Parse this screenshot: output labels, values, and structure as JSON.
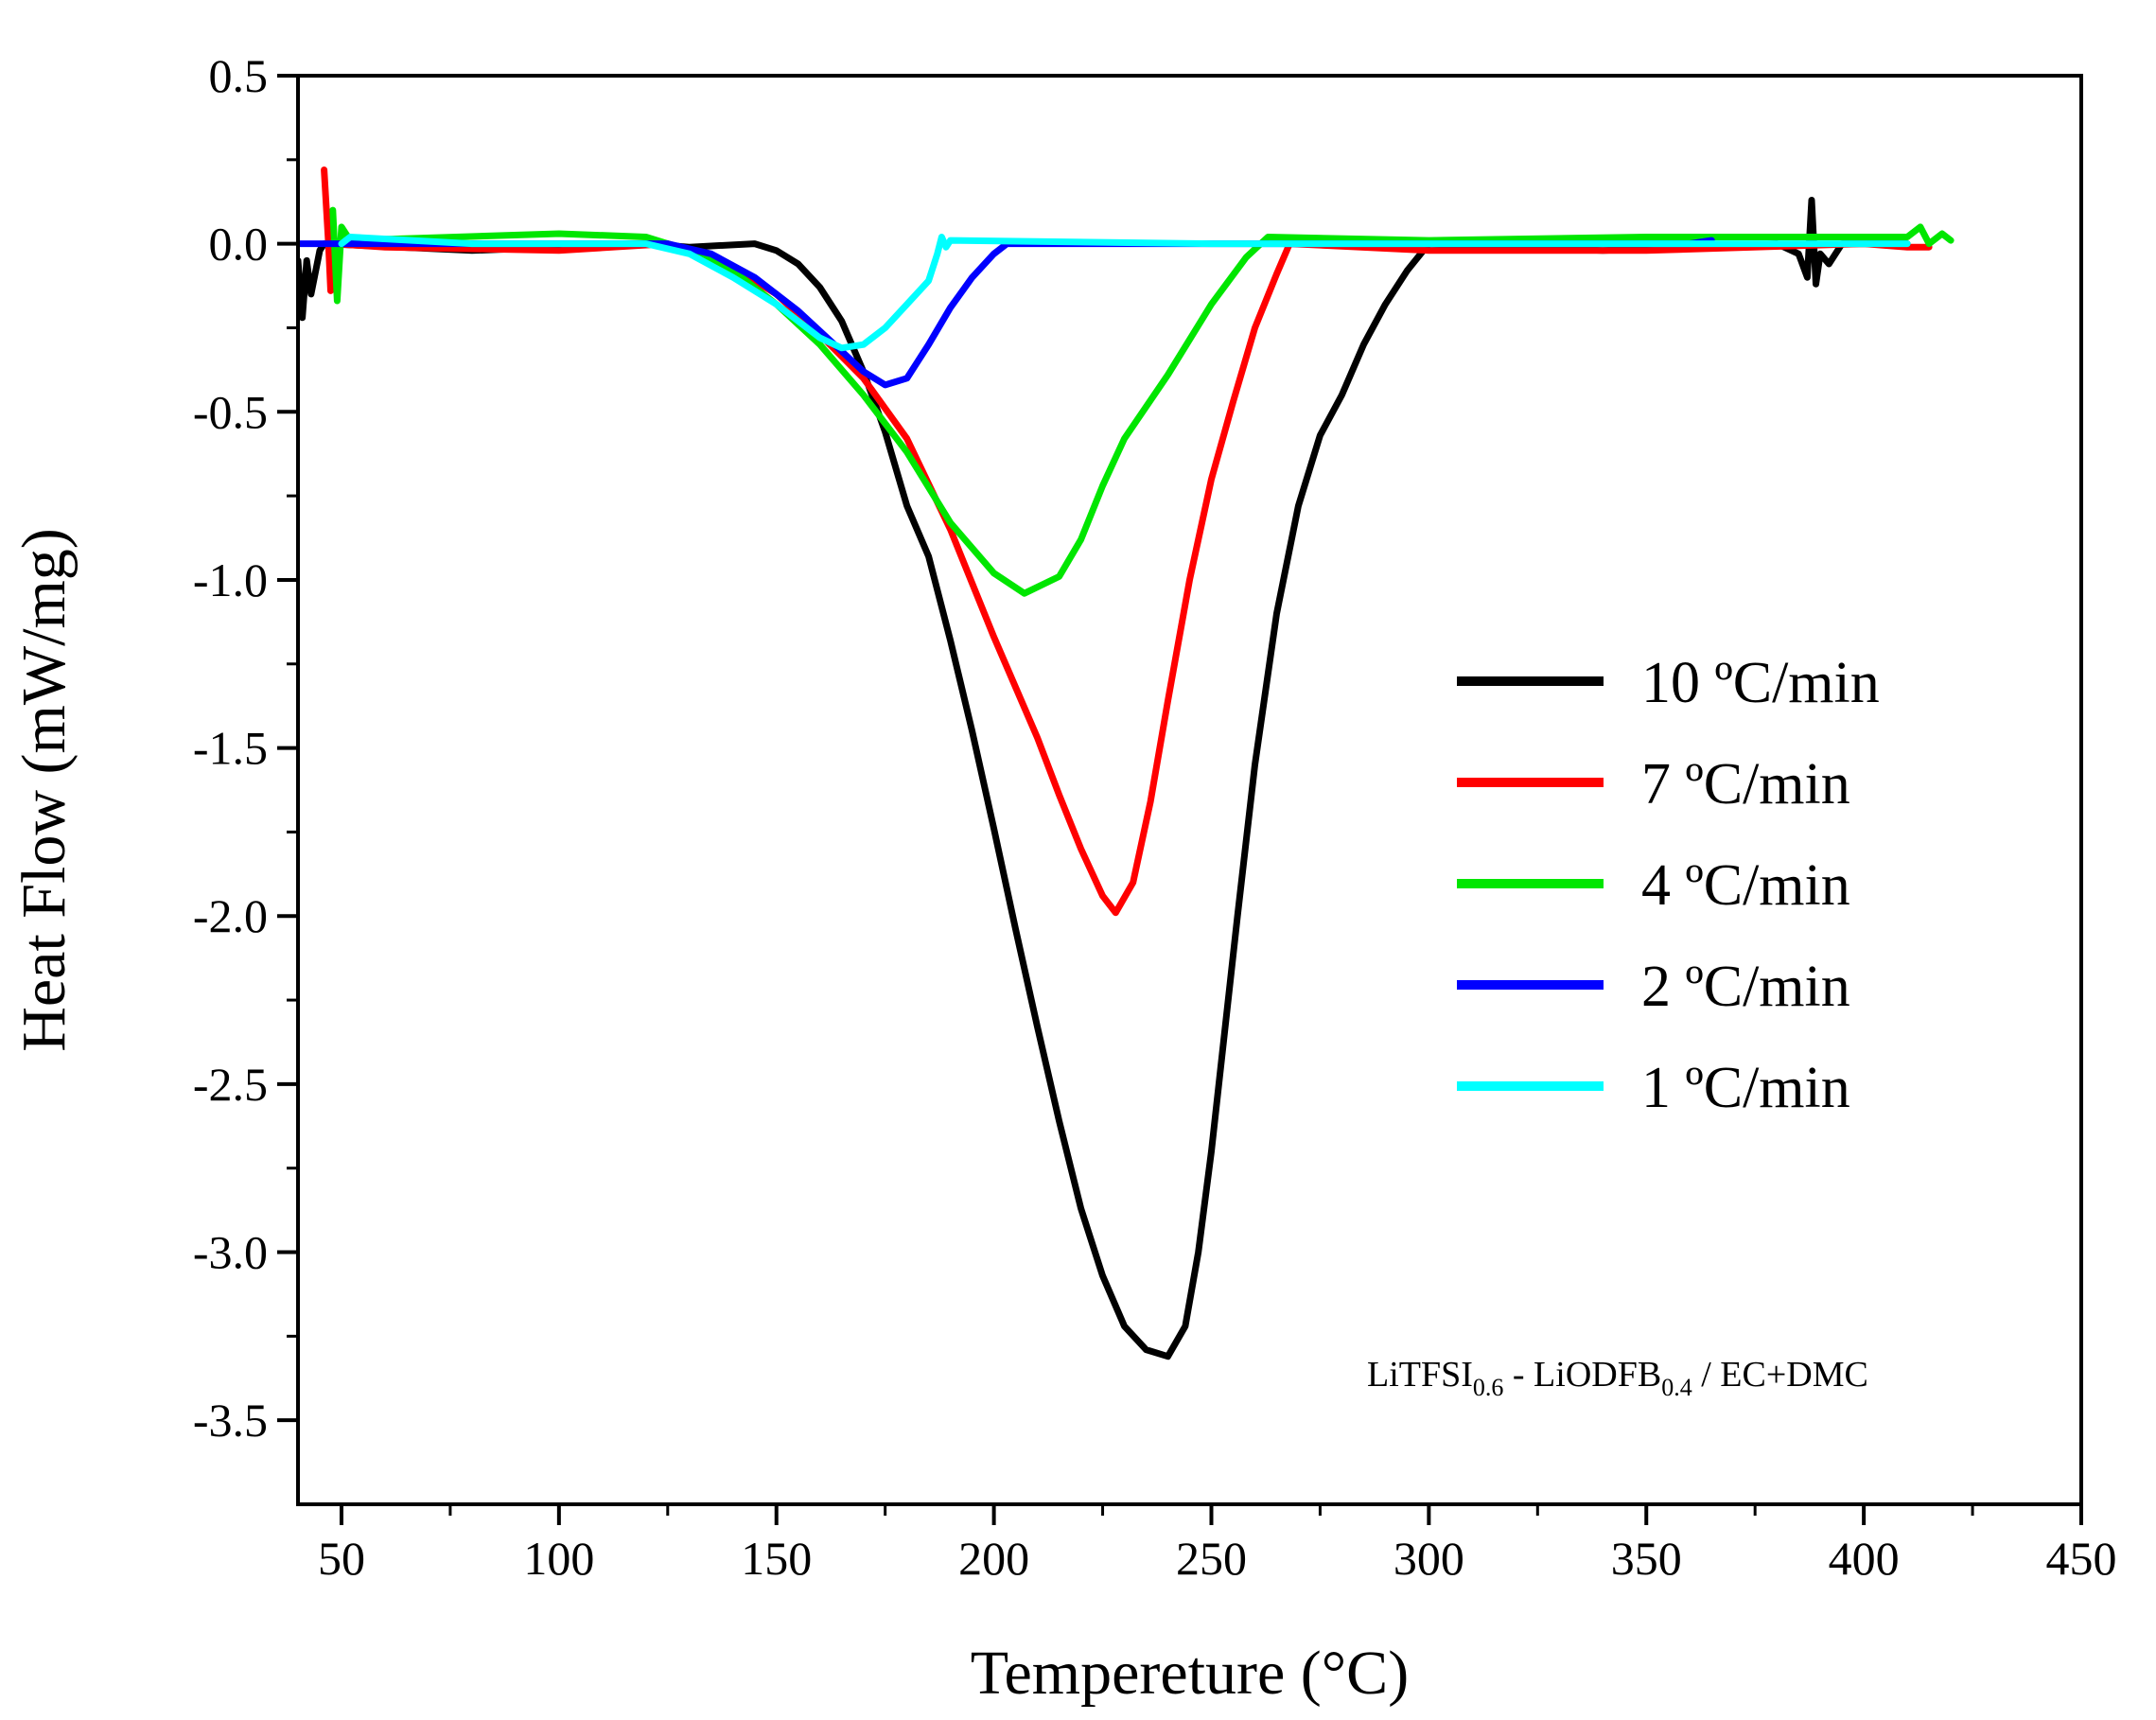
{
  "chart_data": {
    "type": "line",
    "title": "",
    "xlabel": "Tempereture (°C)",
    "ylabel": "Heat Flow (mW/mg)",
    "xlim": [
      40,
      450
    ],
    "ylim": [
      -3.75,
      0.5
    ],
    "xticks": [
      50,
      100,
      150,
      200,
      250,
      300,
      350,
      400,
      450
    ],
    "xtick_labels": [
      "50",
      "100",
      "150",
      "200",
      "250",
      "300",
      "350",
      "400",
      "450"
    ],
    "yticks": [
      0.5,
      0.0,
      -0.5,
      -1.0,
      -1.5,
      -2.0,
      -2.5,
      -3.0,
      -3.5
    ],
    "ytick_labels": [
      "0.5",
      "0.0",
      "-0.5",
      "-1.0",
      "-1.5",
      "-2.0",
      "-2.5",
      "-3.0",
      "-3.5"
    ],
    "grid": false,
    "legend_position": "right",
    "annotation": {
      "parts": [
        {
          "text": "LiTFSI",
          "sub": false
        },
        {
          "text": "0.6",
          "sub": true
        },
        {
          "text": " - LiODFB",
          "sub": false
        },
        {
          "text": "0.4",
          "sub": true
        },
        {
          "text": " / EC+DMC",
          "sub": false
        }
      ]
    },
    "series": [
      {
        "name": "10 ºC/min",
        "color": "#000000",
        "points": [
          [
            40,
            -0.05
          ],
          [
            41,
            -0.22
          ],
          [
            42,
            -0.05
          ],
          [
            43,
            -0.15
          ],
          [
            45,
            -0.02
          ],
          [
            46,
            0.0
          ],
          [
            80,
            -0.02
          ],
          [
            120,
            0.0
          ],
          [
            130,
            -0.01
          ],
          [
            145,
            0.0
          ],
          [
            150,
            -0.02
          ],
          [
            155,
            -0.06
          ],
          [
            160,
            -0.13
          ],
          [
            165,
            -0.23
          ],
          [
            170,
            -0.38
          ],
          [
            175,
            -0.56
          ],
          [
            180,
            -0.78
          ],
          [
            185,
            -0.93
          ],
          [
            190,
            -1.18
          ],
          [
            195,
            -1.45
          ],
          [
            200,
            -1.74
          ],
          [
            205,
            -2.04
          ],
          [
            210,
            -2.33
          ],
          [
            215,
            -2.61
          ],
          [
            220,
            -2.87
          ],
          [
            225,
            -3.07
          ],
          [
            230,
            -3.22
          ],
          [
            235,
            -3.29
          ],
          [
            240,
            -3.31
          ],
          [
            244,
            -3.22
          ],
          [
            247,
            -3.0
          ],
          [
            250,
            -2.7
          ],
          [
            253,
            -2.35
          ],
          [
            256,
            -2.0
          ],
          [
            260,
            -1.55
          ],
          [
            265,
            -1.1
          ],
          [
            270,
            -0.78
          ],
          [
            275,
            -0.57
          ],
          [
            280,
            -0.45
          ],
          [
            285,
            -0.3
          ],
          [
            290,
            -0.18
          ],
          [
            295,
            -0.08
          ],
          [
            300,
            0.0
          ],
          [
            340,
            -0.02
          ],
          [
            380,
            0.0
          ],
          [
            385,
            -0.03
          ],
          [
            387,
            -0.1
          ],
          [
            388,
            0.13
          ],
          [
            389,
            -0.12
          ],
          [
            390,
            -0.03
          ],
          [
            392,
            -0.06
          ],
          [
            395,
            0.0
          ],
          [
            410,
            0.0
          ]
        ]
      },
      {
        "name": "7 ºC/min",
        "color": "#ff0000",
        "points": [
          [
            46,
            0.22
          ],
          [
            47,
            0.0
          ],
          [
            47.5,
            -0.14
          ],
          [
            48,
            0.0
          ],
          [
            60,
            -0.01
          ],
          [
            100,
            -0.02
          ],
          [
            125,
            0.0
          ],
          [
            130,
            -0.02
          ],
          [
            140,
            -0.07
          ],
          [
            150,
            -0.15
          ],
          [
            160,
            -0.27
          ],
          [
            170,
            -0.4
          ],
          [
            180,
            -0.58
          ],
          [
            190,
            -0.85
          ],
          [
            200,
            -1.17
          ],
          [
            210,
            -1.47
          ],
          [
            215,
            -1.64
          ],
          [
            220,
            -1.8
          ],
          [
            225,
            -1.94
          ],
          [
            228,
            -1.99
          ],
          [
            232,
            -1.9
          ],
          [
            236,
            -1.66
          ],
          [
            240,
            -1.36
          ],
          [
            245,
            -1.0
          ],
          [
            250,
            -0.7
          ],
          [
            255,
            -0.47
          ],
          [
            260,
            -0.25
          ],
          [
            265,
            -0.09
          ],
          [
            268,
            0.0
          ],
          [
            300,
            -0.02
          ],
          [
            350,
            -0.02
          ],
          [
            400,
            0.0
          ],
          [
            410,
            -0.01
          ],
          [
            415,
            -0.01
          ]
        ]
      },
      {
        "name": "4 ºC/min",
        "color": "#00e600",
        "points": [
          [
            48,
            0.1
          ],
          [
            49,
            -0.17
          ],
          [
            50,
            0.05
          ],
          [
            52,
            0.01
          ],
          [
            100,
            0.03
          ],
          [
            120,
            0.02
          ],
          [
            125,
            0.0
          ],
          [
            130,
            -0.02
          ],
          [
            140,
            -0.08
          ],
          [
            150,
            -0.18
          ],
          [
            160,
            -0.3
          ],
          [
            170,
            -0.45
          ],
          [
            180,
            -0.62
          ],
          [
            190,
            -0.83
          ],
          [
            200,
            -0.98
          ],
          [
            207,
            -1.04
          ],
          [
            215,
            -0.99
          ],
          [
            220,
            -0.88
          ],
          [
            225,
            -0.72
          ],
          [
            230,
            -0.58
          ],
          [
            240,
            -0.39
          ],
          [
            250,
            -0.18
          ],
          [
            258,
            -0.04
          ],
          [
            263,
            0.02
          ],
          [
            300,
            0.01
          ],
          [
            350,
            0.02
          ],
          [
            400,
            0.02
          ],
          [
            410,
            0.02
          ],
          [
            413,
            0.05
          ],
          [
            415,
            0.0
          ],
          [
            418,
            0.03
          ],
          [
            420,
            0.01
          ]
        ]
      },
      {
        "name": "2 ºC/min",
        "color": "#0000ff",
        "points": [
          [
            40,
            0.0
          ],
          [
            60,
            0.0
          ],
          [
            100,
            0.0
          ],
          [
            125,
            0.0
          ],
          [
            135,
            -0.03
          ],
          [
            145,
            -0.1
          ],
          [
            155,
            -0.2
          ],
          [
            165,
            -0.32
          ],
          [
            170,
            -0.38
          ],
          [
            175,
            -0.42
          ],
          [
            180,
            -0.4
          ],
          [
            185,
            -0.3
          ],
          [
            190,
            -0.19
          ],
          [
            195,
            -0.1
          ],
          [
            200,
            -0.03
          ],
          [
            203,
            0.0
          ],
          [
            300,
            0.0
          ],
          [
            360,
            0.0
          ],
          [
            365,
            0.01
          ]
        ]
      },
      {
        "name": "1 ºC/min",
        "color": "#00ffff",
        "points": [
          [
            50,
            0.0
          ],
          [
            52,
            0.02
          ],
          [
            80,
            0.0
          ],
          [
            120,
            0.0
          ],
          [
            130,
            -0.03
          ],
          [
            140,
            -0.1
          ],
          [
            150,
            -0.18
          ],
          [
            155,
            -0.23
          ],
          [
            160,
            -0.28
          ],
          [
            165,
            -0.31
          ],
          [
            170,
            -0.3
          ],
          [
            175,
            -0.25
          ],
          [
            180,
            -0.18
          ],
          [
            185,
            -0.11
          ],
          [
            187,
            -0.03
          ],
          [
            188,
            0.02
          ],
          [
            189,
            -0.01
          ],
          [
            190,
            0.01
          ],
          [
            250,
            0.0
          ],
          [
            300,
            0.0
          ],
          [
            350,
            0.0
          ],
          [
            400,
            0.0
          ],
          [
            410,
            0.0
          ]
        ]
      }
    ]
  }
}
